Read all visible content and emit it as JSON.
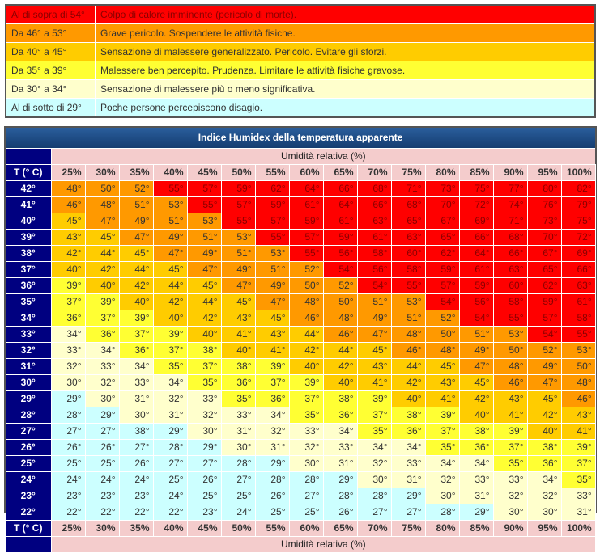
{
  "legend": [
    {
      "range": "Al di sopra di 54°",
      "description": "Colpo di calore imminente (pericolo di morte).",
      "color": "#ff0000"
    },
    {
      "range": "Da 46° a 53°",
      "description": "Grave pericolo. Sospendere le attività fisiche.",
      "color": "#ff9900"
    },
    {
      "range": "Da 40° a 45°",
      "description": "Sensazione di malessere generalizzato. Pericolo. Evitare gli sforzi.",
      "color": "#ffcc00"
    },
    {
      "range": "Da 35° a 39°",
      "description": "Malessere ben percepito. Prudenza. Limitare le attività fisiche gravose.",
      "color": "#ffff33"
    },
    {
      "range": "Da 30° a 34°",
      "description": "Sensazione di malessere più o meno significativa.",
      "color": "#ffffcc"
    },
    {
      "range": "Al di sotto di 29°",
      "description": "Poche persone percepiscono disagio.",
      "color": "#ccffff"
    }
  ],
  "table": {
    "title": "Indice Humidex della temperatura apparente",
    "humidity_label": "Umidità relativa (%)",
    "temp_label": "T (° C)",
    "columns": [
      "25%",
      "30%",
      "35%",
      "40%",
      "45%",
      "50%",
      "55%",
      "60%",
      "65%",
      "70%",
      "75%",
      "80%",
      "85%",
      "90%",
      "95%",
      "100%"
    ],
    "rows": [
      {
        "t": "42°",
        "v": [
          48,
          50,
          52,
          55,
          57,
          59,
          62,
          64,
          66,
          68,
          71,
          73,
          75,
          77,
          80,
          82
        ]
      },
      {
        "t": "41°",
        "v": [
          46,
          48,
          51,
          53,
          55,
          57,
          59,
          61,
          64,
          66,
          68,
          70,
          72,
          74,
          76,
          79
        ]
      },
      {
        "t": "40°",
        "v": [
          45,
          47,
          49,
          51,
          53,
          55,
          57,
          59,
          61,
          63,
          65,
          67,
          69,
          71,
          73,
          75
        ]
      },
      {
        "t": "39°",
        "v": [
          43,
          45,
          47,
          49,
          51,
          53,
          55,
          57,
          59,
          61,
          63,
          65,
          66,
          68,
          70,
          72
        ]
      },
      {
        "t": "38°",
        "v": [
          42,
          44,
          45,
          47,
          49,
          51,
          53,
          55,
          56,
          58,
          60,
          62,
          64,
          66,
          67,
          69
        ]
      },
      {
        "t": "37°",
        "v": [
          40,
          42,
          44,
          45,
          47,
          49,
          51,
          52,
          54,
          56,
          58,
          59,
          61,
          63,
          65,
          66
        ]
      },
      {
        "t": "36°",
        "v": [
          39,
          40,
          42,
          44,
          45,
          47,
          49,
          50,
          52,
          54,
          55,
          57,
          59,
          60,
          62,
          63
        ]
      },
      {
        "t": "35°",
        "v": [
          37,
          39,
          40,
          42,
          44,
          45,
          47,
          48,
          50,
          51,
          53,
          54,
          56,
          58,
          59,
          61
        ]
      },
      {
        "t": "34°",
        "v": [
          36,
          37,
          39,
          40,
          42,
          43,
          45,
          46,
          48,
          49,
          51,
          52,
          54,
          55,
          57,
          58
        ]
      },
      {
        "t": "33°",
        "v": [
          34,
          36,
          37,
          39,
          40,
          41,
          43,
          44,
          46,
          47,
          48,
          50,
          51,
          53,
          54,
          55
        ]
      },
      {
        "t": "32°",
        "v": [
          33,
          34,
          36,
          37,
          38,
          40,
          41,
          42,
          44,
          45,
          46,
          48,
          49,
          50,
          52,
          53
        ]
      },
      {
        "t": "31°",
        "v": [
          32,
          33,
          34,
          35,
          37,
          38,
          39,
          40,
          42,
          43,
          44,
          45,
          47,
          48,
          49,
          50
        ]
      },
      {
        "t": "30°",
        "v": [
          30,
          32,
          33,
          34,
          35,
          36,
          37,
          39,
          40,
          41,
          42,
          43,
          45,
          46,
          47,
          48
        ]
      },
      {
        "t": "29°",
        "v": [
          29,
          30,
          31,
          32,
          33,
          35,
          36,
          37,
          38,
          39,
          40,
          41,
          42,
          43,
          45,
          46
        ]
      },
      {
        "t": "28°",
        "v": [
          28,
          29,
          30,
          31,
          32,
          33,
          34,
          35,
          36,
          37,
          38,
          39,
          40,
          41,
          42,
          43
        ]
      },
      {
        "t": "27°",
        "v": [
          27,
          27,
          38,
          29,
          30,
          31,
          32,
          33,
          34,
          35,
          36,
          37,
          38,
          39,
          40,
          41
        ]
      },
      {
        "t": "26°",
        "v": [
          26,
          26,
          27,
          28,
          29,
          30,
          31,
          32,
          33,
          34,
          34,
          35,
          36,
          37,
          38,
          39
        ]
      },
      {
        "t": "25°",
        "v": [
          25,
          25,
          26,
          27,
          27,
          28,
          29,
          30,
          31,
          32,
          33,
          34,
          34,
          35,
          36,
          37
        ]
      },
      {
        "t": "24°",
        "v": [
          24,
          24,
          24,
          25,
          26,
          27,
          28,
          28,
          29,
          30,
          31,
          32,
          33,
          33,
          34,
          35
        ]
      },
      {
        "t": "23°",
        "v": [
          23,
          23,
          23,
          24,
          25,
          25,
          26,
          27,
          28,
          28,
          29,
          30,
          31,
          32,
          32,
          33
        ]
      },
      {
        "t": "22°",
        "v": [
          22,
          22,
          22,
          22,
          23,
          24,
          25,
          25,
          26,
          27,
          27,
          28,
          29,
          30,
          30,
          31
        ]
      }
    ]
  },
  "colors": {
    "red": "#ff0000",
    "orange": "#ff9900",
    "gold": "#ffcc00",
    "yellow": "#ffff33",
    "cream": "#ffffcc",
    "cyan": "#ccffff",
    "header_blue": "#1d4a82",
    "label_navy": "#000080",
    "pink": "#f4cccc"
  }
}
